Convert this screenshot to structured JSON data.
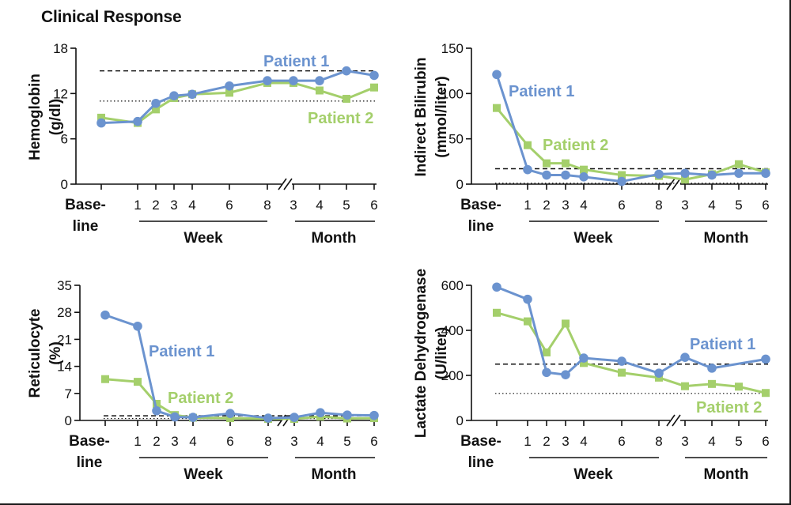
{
  "figure": {
    "title": "Clinical Response"
  },
  "colors": {
    "patient1": "#6b93cf",
    "patient2": "#a4cf6b",
    "axis": "#111111"
  },
  "x_axis": {
    "categories": [
      "Baseline",
      "Week 1",
      "Week 2",
      "Week 3",
      "Week 4",
      "Week 6",
      "Week 8",
      "Month 3",
      "Month 4",
      "Month 5",
      "Month 6"
    ],
    "tick_labels": [
      "1",
      "2",
      "3",
      "4",
      "6",
      "8",
      "3",
      "4",
      "5",
      "6"
    ],
    "baseline_line1": "Base-",
    "baseline_line2": "line",
    "week_label": "Week",
    "month_label": "Month"
  },
  "chart_data": [
    {
      "type": "line",
      "id": "hemoglobin",
      "ylabel_line1": "Hemoglobin",
      "ylabel_line2": "(g/dl)",
      "ylim": [
        0,
        18
      ],
      "yticks": [
        0,
        6,
        12,
        18
      ],
      "reference_dashed": 15,
      "reference_dotted": 11,
      "series": [
        {
          "name": "Patient 1",
          "values": [
            8.1,
            8.3,
            10.7,
            11.7,
            11.9,
            13.0,
            13.7,
            13.7,
            13.7,
            15.0,
            14.4
          ]
        },
        {
          "name": "Patient 2",
          "values": [
            8.8,
            8.1,
            9.9,
            11.4,
            11.9,
            12.1,
            13.4,
            13.4,
            12.4,
            11.3,
            12.8
          ]
        }
      ],
      "annotations": [
        "Patient 1",
        "Patient 2"
      ]
    },
    {
      "type": "line",
      "id": "bilirubin",
      "ylabel_line1": "Indirect Bilirubin",
      "ylabel_line2": "(mmol/liter)",
      "ylim": [
        0,
        150
      ],
      "yticks": [
        0,
        50,
        100,
        150
      ],
      "reference_dashed": 17,
      "reference_dotted": 1,
      "series": [
        {
          "name": "Patient 1",
          "values": [
            121,
            16,
            10,
            10,
            8,
            3,
            11,
            12,
            10,
            12,
            12
          ]
        },
        {
          "name": "Patient 2",
          "values": [
            84,
            43,
            23,
            23,
            16,
            10,
            9,
            5,
            11,
            22,
            13
          ]
        }
      ],
      "annotations": [
        "Patient 1",
        "Patient 2"
      ]
    },
    {
      "type": "line",
      "id": "reticulocyte",
      "ylabel_line1": "Reticulocyte",
      "ylabel_line2": "(%)",
      "ylim": [
        0,
        35
      ],
      "yticks": [
        0,
        7,
        14,
        21,
        28,
        35
      ],
      "reference_dashed": 1.2,
      "reference_dotted": 0.5,
      "series": [
        {
          "name": "Patient 1",
          "values": [
            27.3,
            24.4,
            2.5,
            0.9,
            0.8,
            1.8,
            0.6,
            0.8,
            2.0,
            1.4,
            1.3
          ]
        },
        {
          "name": "Patient 2",
          "values": [
            10.7,
            10.0,
            4.3,
            1.4,
            0.7,
            0.6,
            0.4,
            0.4,
            1.0,
            0.5,
            0.6
          ]
        }
      ],
      "annotations": [
        "Patient 1",
        "Patient 2"
      ]
    },
    {
      "type": "line",
      "id": "ldh",
      "ylabel_line1": "Lactate Dehydrogenase",
      "ylabel_line2": "(U/liter)",
      "ylim": [
        0,
        600
      ],
      "yticks": [
        0,
        200,
        400,
        600
      ],
      "reference_dashed": 250,
      "reference_dotted": 120,
      "series": [
        {
          "name": "Patient 1",
          "values": [
            592,
            538,
            213,
            203,
            277,
            263,
            210,
            280,
            232,
            null,
            272
          ]
        },
        {
          "name": "Patient 2",
          "values": [
            478,
            440,
            302,
            430,
            255,
            212,
            190,
            152,
            162,
            150,
            122
          ]
        }
      ],
      "annotations": [
        "Patient 1",
        "Patient 2"
      ]
    }
  ]
}
